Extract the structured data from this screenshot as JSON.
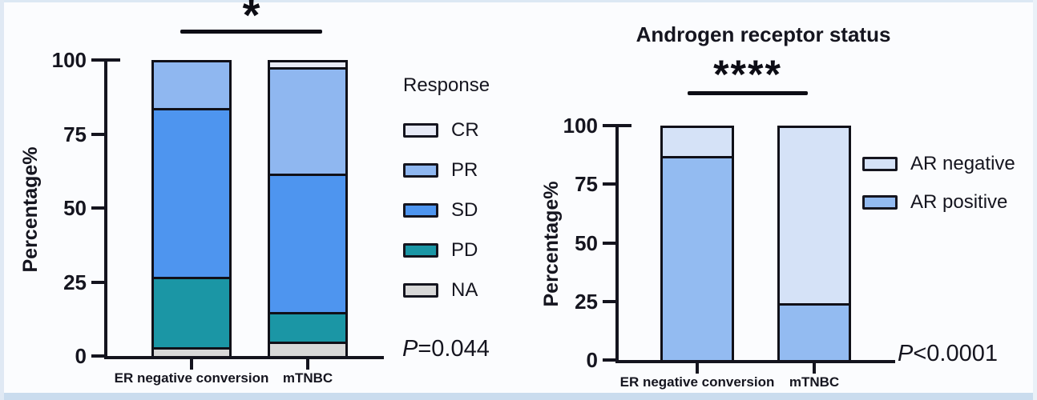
{
  "figure": {
    "background": "#fbfcfe"
  },
  "chart_data": [
    {
      "type": "bar",
      "stacked": true,
      "title": "",
      "ylabel": "Percentage%",
      "ylim": [
        0,
        100
      ],
      "yticks": [
        100,
        75,
        50,
        25,
        0
      ],
      "grid": false,
      "categories": [
        "ER negative conversion",
        "mTNBC"
      ],
      "series": [
        {
          "name": "CR",
          "color": "#e7eaf6",
          "values": [
            0,
            1.5
          ]
        },
        {
          "name": "PR",
          "color": "#8fb7f0",
          "values": [
            15.5,
            36.5
          ]
        },
        {
          "name": "SD",
          "color": "#4e95ef",
          "values": [
            57.5,
            47
          ]
        },
        {
          "name": "PD",
          "color": "#1b96a5",
          "values": [
            24,
            10
          ]
        },
        {
          "name": "NA",
          "color": "#d8d8d8",
          "values": [
            3,
            5
          ]
        }
      ],
      "legend_title": "Response",
      "legend_position": "right",
      "significance": "*",
      "p_value": "P=0.044"
    },
    {
      "type": "bar",
      "stacked": true,
      "title": "Androgen receptor status",
      "ylabel": "Percentage%",
      "ylim": [
        0,
        100
      ],
      "yticks": [
        100,
        75,
        50,
        25,
        0
      ],
      "grid": false,
      "categories": [
        "ER negative conversion",
        "mTNBC"
      ],
      "series": [
        {
          "name": "AR negative",
          "color": "#d5e2f7",
          "values": [
            12,
            75.5
          ]
        },
        {
          "name": "AR positive",
          "color": "#93bbf1",
          "values": [
            88,
            24.5
          ]
        }
      ],
      "legend_title": "",
      "legend_position": "right",
      "significance": "****",
      "p_value": "P<0.0001"
    }
  ]
}
